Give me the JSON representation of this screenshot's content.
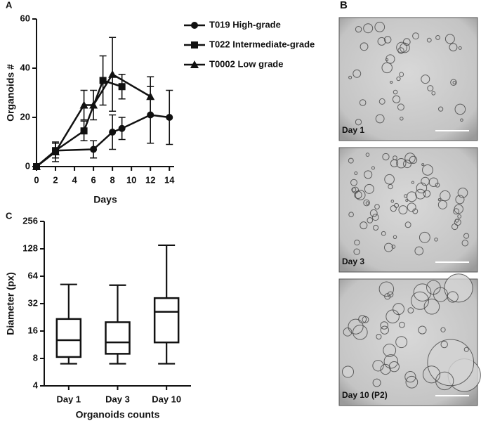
{
  "chart_data": [
    {
      "type": "line",
      "panel_label": "A",
      "xlabel": "Days",
      "ylabel": "Organoids #",
      "xlim": [
        0,
        14.5
      ],
      "xticks": [
        0,
        2,
        4,
        6,
        8,
        10,
        12,
        14
      ],
      "ylim": [
        0,
        60
      ],
      "yticks": [
        0,
        20,
        40,
        60
      ],
      "series": [
        {
          "name": "T019 High-grade",
          "color": "#111111",
          "marker": "circle",
          "x": [
            0,
            2,
            6,
            8,
            9,
            12,
            14
          ],
          "values": [
            0,
            6.5,
            7,
            14,
            15.5,
            21,
            20
          ],
          "errors": [
            0,
            3,
            3.5,
            7,
            4.5,
            11.5,
            11
          ]
        },
        {
          "name": "T022 Intermediate-grade",
          "color": "#111111",
          "marker": "square",
          "x": [
            0,
            2,
            5,
            7,
            9
          ],
          "values": [
            0,
            6.5,
            14.5,
            35,
            32.5
          ],
          "errors": [
            0,
            3,
            4,
            10,
            5
          ]
        },
        {
          "name": "T0002 Low grade",
          "color": "#111111",
          "marker": "triangle",
          "x": [
            0,
            2,
            5,
            6,
            8,
            12
          ],
          "values": [
            0,
            6,
            25,
            25,
            37.5,
            28.5
          ],
          "errors": [
            0,
            4,
            6,
            6,
            15,
            8
          ]
        }
      ]
    },
    {
      "type": "box",
      "panel_label": "C",
      "xlabel": "Organoids counts",
      "ylabel": "Diameter (px)",
      "log_base": 2,
      "ylim": [
        4,
        256
      ],
      "yticks": [
        4,
        8,
        16,
        32,
        64,
        128,
        256
      ],
      "categories": [
        "Day 1",
        "Day 3",
        "Day 10"
      ],
      "color": "#111111",
      "min": [
        7,
        7,
        7
      ],
      "q1": [
        8.3,
        9,
        12
      ],
      "median": [
        12.7,
        12,
        26
      ],
      "q3": [
        21.7,
        20,
        36.8
      ],
      "max": [
        52,
        51,
        140
      ]
    }
  ],
  "images": {
    "panel_label": "B",
    "captions": [
      "Day 1",
      "Day 3",
      "Day 10 (P2)"
    ]
  }
}
